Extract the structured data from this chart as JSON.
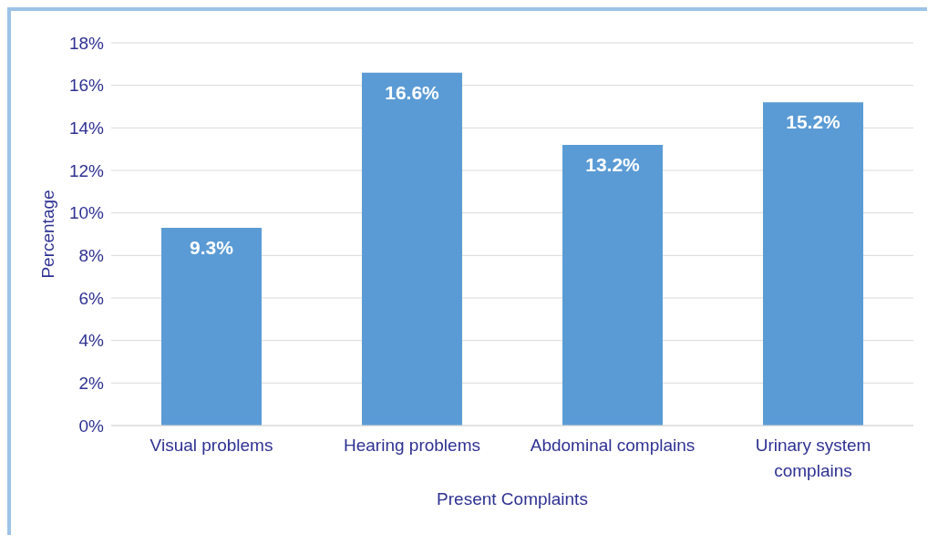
{
  "chart_data": {
    "type": "bar",
    "xlabel": "Present Complaints",
    "ylabel": "Percentage",
    "categories": [
      "Visual problems",
      "Hearing problems",
      "Abdominal complains",
      "Urinary system complains"
    ],
    "values": [
      9.3,
      16.6,
      13.2,
      15.2
    ],
    "value_labels": [
      "9.3%",
      "16.6%",
      "13.2%",
      "15.2%"
    ],
    "color": "#5b9bd5",
    "ylim": [
      0,
      18
    ],
    "yticks": [
      {
        "value": 0,
        "label": "0%"
      },
      {
        "value": 2,
        "label": "2%"
      },
      {
        "value": 4,
        "label": "4%"
      },
      {
        "value": 6,
        "label": "6%"
      },
      {
        "value": 8,
        "label": "8%"
      },
      {
        "value": 10,
        "label": "10%"
      },
      {
        "value": 12,
        "label": "12%"
      },
      {
        "value": 14,
        "label": "14%"
      },
      {
        "value": 16,
        "label": "16%"
      },
      {
        "value": 18,
        "label": "18%"
      }
    ],
    "grid": "y"
  }
}
